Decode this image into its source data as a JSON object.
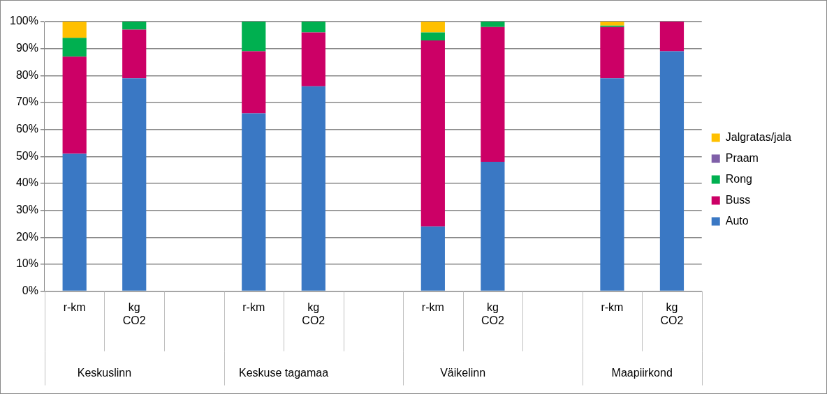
{
  "chart_data": {
    "type": "bar",
    "stacked": true,
    "categories": [
      "r-km",
      "kg CO2",
      null,
      "r-km",
      "kg CO2",
      null,
      "r-km",
      "kg CO2",
      null,
      "r-km",
      "kg CO2"
    ],
    "series": [
      {
        "name": "Auto",
        "color": "#3a78c4",
        "values": [
          51,
          79,
          null,
          66,
          76,
          null,
          24,
          48,
          null,
          79,
          89
        ]
      },
      {
        "name": "Buss",
        "color": "#cc0066",
        "values": [
          36,
          18,
          null,
          23,
          20,
          null,
          69,
          50,
          null,
          19,
          11
        ]
      },
      {
        "name": "Rong",
        "color": "#00b050",
        "values": [
          7,
          3,
          null,
          11,
          4,
          null,
          3,
          2,
          null,
          0.5,
          0
        ]
      },
      {
        "name": "Praam",
        "color": "#7f5fa8",
        "values": [
          0,
          0,
          null,
          0,
          0,
          null,
          0,
          0,
          null,
          0,
          0
        ]
      },
      {
        "name": "Jalgratas/jala",
        "color": "#ffc000",
        "values": [
          6,
          0,
          null,
          0,
          0,
          null,
          4,
          0,
          null,
          1.5,
          0
        ]
      }
    ],
    "ylim": [
      0,
      100
    ],
    "yticks": [
      {
        "value": 0,
        "label": "0%"
      },
      {
        "value": 10,
        "label": "10%"
      },
      {
        "value": 20,
        "label": "20%"
      },
      {
        "value": 30,
        "label": "30%"
      },
      {
        "value": 40,
        "label": "40%"
      },
      {
        "value": 50,
        "label": "50%"
      },
      {
        "value": 60,
        "label": "60%"
      },
      {
        "value": 70,
        "label": "70%"
      },
      {
        "value": 80,
        "label": "80%"
      },
      {
        "value": 90,
        "label": "90%"
      },
      {
        "value": 100,
        "label": "100%"
      }
    ],
    "grid": "y",
    "legend": "right",
    "annotations": [
      "Keskuslinn",
      "Keskuse tagamaa",
      "Väikelinn",
      "Maapiirkond"
    ]
  }
}
